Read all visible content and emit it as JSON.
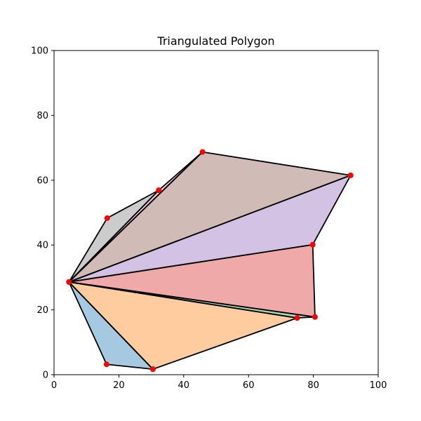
{
  "chart_data": {
    "type": "scatter",
    "title": "Triangulated Polygon",
    "xlabel": "",
    "ylabel": "",
    "xlim": [
      0,
      100
    ],
    "ylim": [
      0,
      100
    ],
    "xticks": [
      0,
      20,
      40,
      60,
      80,
      100
    ],
    "yticks": [
      0,
      20,
      40,
      60,
      80,
      100
    ],
    "grid": false,
    "vertices": [
      {
        "x": 4.6,
        "y": 28.6
      },
      {
        "x": 16.2,
        "y": 3.2
      },
      {
        "x": 30.5,
        "y": 1.7
      },
      {
        "x": 75.0,
        "y": 17.5
      },
      {
        "x": 80.5,
        "y": 17.8
      },
      {
        "x": 79.8,
        "y": 40.1
      },
      {
        "x": 91.5,
        "y": 61.5
      },
      {
        "x": 45.8,
        "y": 68.7
      },
      {
        "x": 32.3,
        "y": 56.9
      },
      {
        "x": 16.4,
        "y": 48.3
      }
    ],
    "triangles": [
      {
        "v": [
          0,
          1,
          2
        ],
        "color": "#1f77b4"
      },
      {
        "v": [
          0,
          2,
          3
        ],
        "color": "#ff7f0e"
      },
      {
        "v": [
          0,
          3,
          4
        ],
        "color": "#2ca02c"
      },
      {
        "v": [
          0,
          4,
          5
        ],
        "color": "#d62728"
      },
      {
        "v": [
          0,
          5,
          6
        ],
        "color": "#9467bd"
      },
      {
        "v": [
          0,
          6,
          7
        ],
        "color": "#8c564b"
      },
      {
        "v": [
          0,
          7,
          8
        ],
        "color": "#e377c2"
      },
      {
        "v": [
          0,
          8,
          9
        ],
        "color": "#7f7f7f"
      }
    ],
    "fill_alpha": 0.4,
    "edge_color": "#000000",
    "point_color": "#ff0000"
  }
}
